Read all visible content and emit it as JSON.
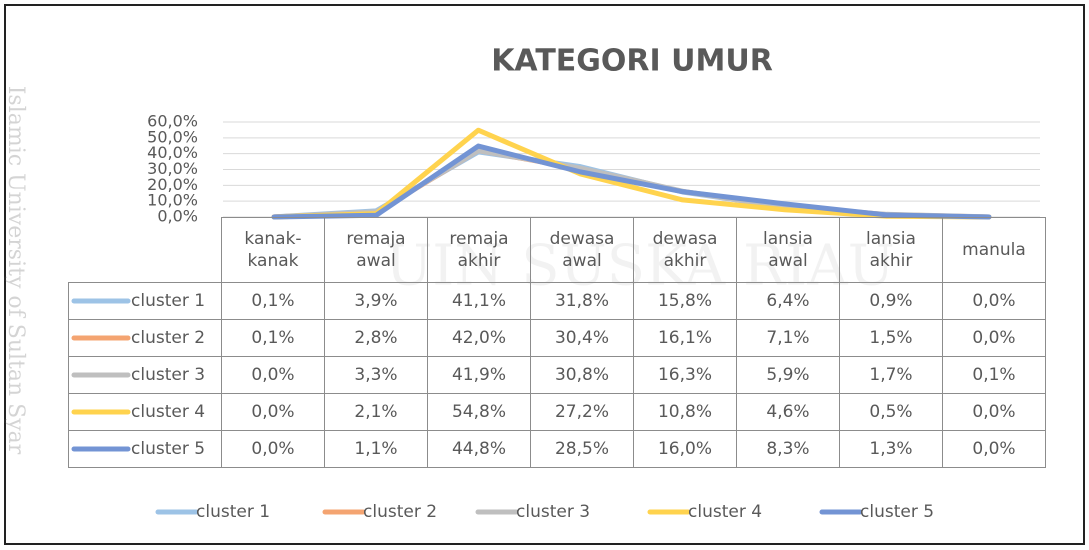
{
  "chart_data": {
    "type": "line",
    "title": "KATEGORI UMUR",
    "watermark": "Islamic University of Sultan Syar",
    "watermark_center": "UIN SUSKA RIAU",
    "categories": [
      "kanak-kanak",
      "remaja awal",
      "remaja akhir",
      "dewasa awal",
      "dewasa akhir",
      "lansia awal",
      "lansia akhir",
      "manula"
    ],
    "ylim": [
      0,
      60
    ],
    "yticks": [
      {
        "value": 0,
        "label": "0,0%"
      },
      {
        "value": 10,
        "label": "10,0%"
      },
      {
        "value": 20,
        "label": "20,0%"
      },
      {
        "value": 30,
        "label": "30,0%"
      },
      {
        "value": 40,
        "label": "40,0%"
      },
      {
        "value": 50,
        "label": "50,0%"
      },
      {
        "value": 60,
        "label": "60,0%"
      }
    ],
    "grid": true,
    "legend": "bottom",
    "series": [
      {
        "name": "cluster 1",
        "color": "#9dc3e6",
        "values": [
          0.1,
          3.9,
          41.1,
          31.8,
          15.8,
          6.4,
          0.9,
          0.0
        ],
        "value_labels": [
          "0,1%",
          "3,9%",
          "41,1%",
          "31,8%",
          "15,8%",
          "6,4%",
          "0,9%",
          "0,0%"
        ]
      },
      {
        "name": "cluster 2",
        "color": "#f4a471",
        "values": [
          0.1,
          2.8,
          42.0,
          30.4,
          16.1,
          7.1,
          1.5,
          0.0
        ],
        "value_labels": [
          "0,1%",
          "2,8%",
          "42,0%",
          "30,4%",
          "16,1%",
          "7,1%",
          "1,5%",
          "0,0%"
        ]
      },
      {
        "name": "cluster 3",
        "color": "#bfbfbf",
        "values": [
          0.0,
          3.3,
          41.9,
          30.8,
          16.3,
          5.9,
          1.7,
          0.1
        ],
        "value_labels": [
          "0,0%",
          "3,3%",
          "41,9%",
          "30,8%",
          "16,3%",
          "5,9%",
          "1,7%",
          "0,1%"
        ]
      },
      {
        "name": "cluster 4",
        "color": "#ffd34e",
        "values": [
          0.0,
          2.1,
          54.8,
          27.2,
          10.8,
          4.6,
          0.5,
          0.0
        ],
        "value_labels": [
          "0,0%",
          "2,1%",
          "54,8%",
          "27,2%",
          "10,8%",
          "4,6%",
          "0,5%",
          "0,0%"
        ]
      },
      {
        "name": "cluster 5",
        "color": "#7394d4",
        "values": [
          0.0,
          1.1,
          44.8,
          28.5,
          16.0,
          8.3,
          1.3,
          0.0
        ],
        "value_labels": [
          "0,0%",
          "1,1%",
          "44,8%",
          "28,5%",
          "16,0%",
          "8,3%",
          "1,3%",
          "0,0%"
        ]
      }
    ]
  }
}
